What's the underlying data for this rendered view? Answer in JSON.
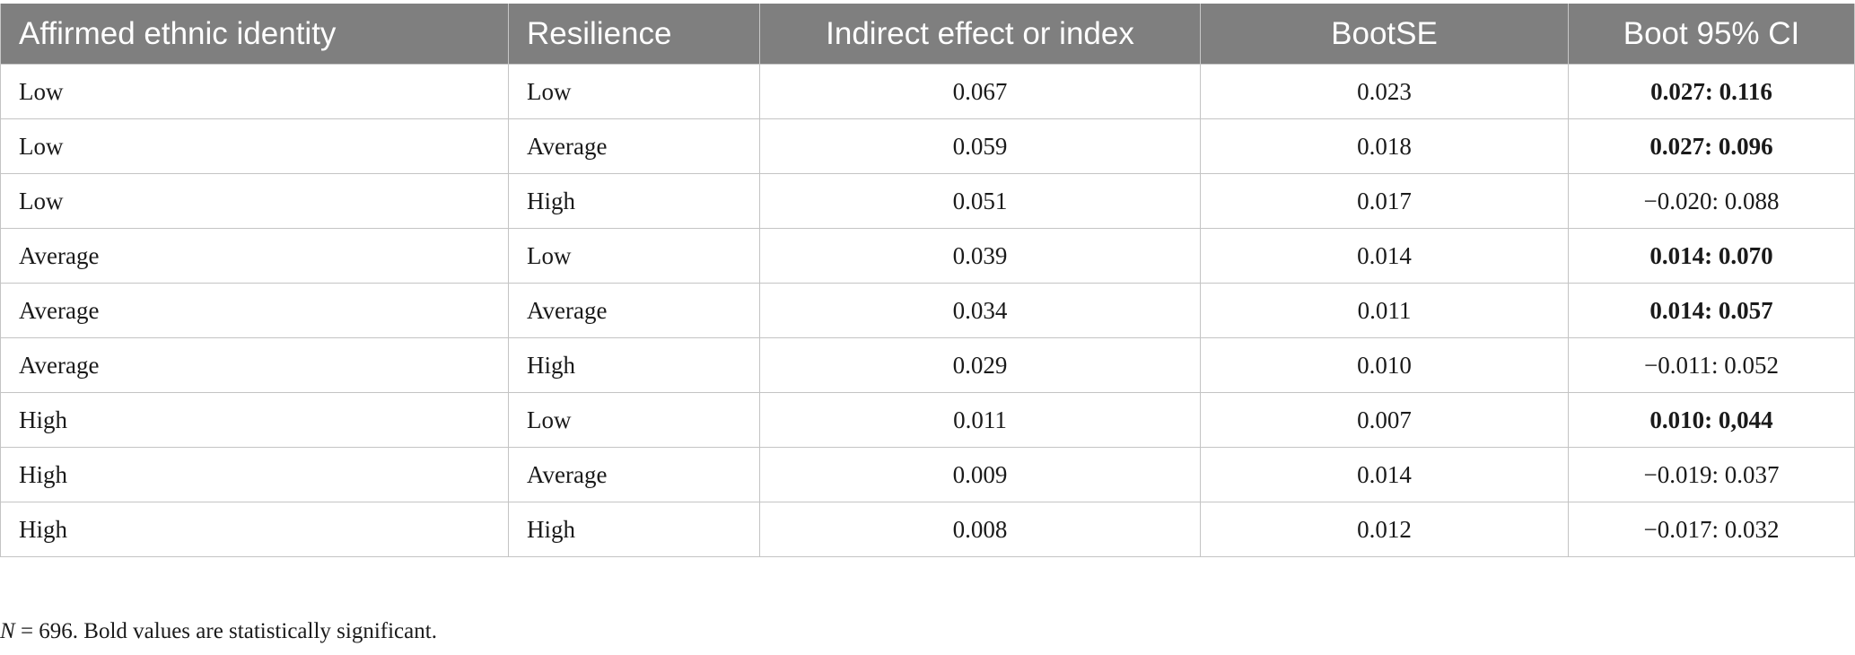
{
  "table": {
    "headers": [
      "Affirmed ethnic identity",
      "Resilience",
      "Indirect effect or index",
      "BootSE",
      "Boot 95% CI"
    ],
    "rows": [
      {
        "ethnic": "Low",
        "resilience": "Low",
        "effect": "0.067",
        "bootse": "0.023",
        "ci": "0.027: 0.116",
        "significant": true
      },
      {
        "ethnic": "Low",
        "resilience": "Average",
        "effect": "0.059",
        "bootse": "0.018",
        "ci": "0.027: 0.096",
        "significant": true
      },
      {
        "ethnic": "Low",
        "resilience": "High",
        "effect": "0.051",
        "bootse": "0.017",
        "ci": "−0.020: 0.088",
        "significant": false
      },
      {
        "ethnic": "Average",
        "resilience": "Low",
        "effect": "0.039",
        "bootse": "0.014",
        "ci": "0.014: 0.070",
        "significant": true
      },
      {
        "ethnic": "Average",
        "resilience": "Average",
        "effect": "0.034",
        "bootse": "0.011",
        "ci": "0.014: 0.057",
        "significant": true
      },
      {
        "ethnic": "Average",
        "resilience": "High",
        "effect": "0.029",
        "bootse": "0.010",
        "ci": "−0.011: 0.052",
        "significant": false
      },
      {
        "ethnic": "High",
        "resilience": "Low",
        "effect": "0.011",
        "bootse": "0.007",
        "ci": "0.010: 0,044",
        "significant": true
      },
      {
        "ethnic": "High",
        "resilience": "Average",
        "effect": "0.009",
        "bootse": "0.014",
        "ci": "−0.019: 0.037",
        "significant": false
      },
      {
        "ethnic": "High",
        "resilience": "High",
        "effect": "0.008",
        "bootse": "0.012",
        "ci": "−0.017: 0.032",
        "significant": false
      }
    ]
  },
  "footnote": {
    "n_label": "N",
    "text": " = 696. Bold values are statistically significant."
  }
}
